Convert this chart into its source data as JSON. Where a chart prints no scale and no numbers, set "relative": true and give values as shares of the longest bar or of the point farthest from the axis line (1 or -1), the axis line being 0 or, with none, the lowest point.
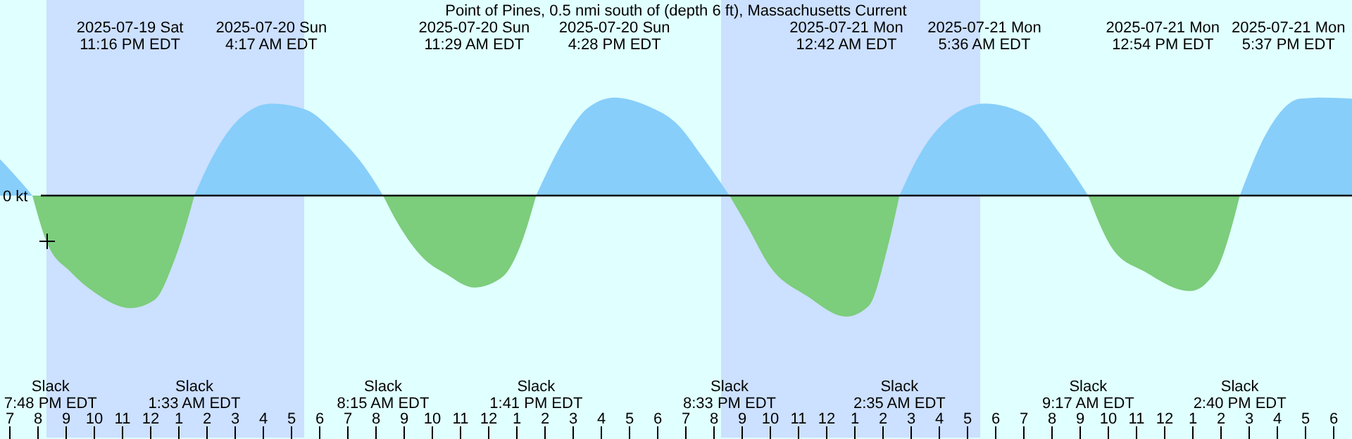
{
  "chart_data": {
    "type": "area",
    "title": "Point of Pines, 0.5 nmi south of (depth 6 ft), Massachusetts Current",
    "relative": true,
    "x": [
      "2025-07-19T18:39",
      "2025-07-19T19:15",
      "2025-07-19T19:48",
      "2025-07-19T20:18",
      "2025-07-19T21:09",
      "2025-07-19T22:00",
      "2025-07-19T23:16",
      "2025-07-20T00:09",
      "2025-07-20T00:48",
      "2025-07-20T01:18",
      "2025-07-20T01:33",
      "2025-07-20T02:09",
      "2025-07-20T03:00",
      "2025-07-20T04:17",
      "2025-07-20T05:30",
      "2025-07-20T06:39",
      "2025-07-20T07:39",
      "2025-07-20T08:15",
      "2025-07-20T08:48",
      "2025-07-20T09:39",
      "2025-07-20T10:30",
      "2025-07-20T11:29",
      "2025-07-20T12:30",
      "2025-07-20T13:09",
      "2025-07-20T13:41",
      "2025-07-20T14:39",
      "2025-07-20T15:30",
      "2025-07-20T16:28",
      "2025-07-20T17:39",
      "2025-07-20T18:39",
      "2025-07-20T19:39",
      "2025-07-20T20:33",
      "2025-07-20T21:09",
      "2025-07-20T22:00",
      "2025-07-20T23:18",
      "2025-07-21T00:42",
      "2025-07-21T01:30",
      "2025-07-21T02:09",
      "2025-07-21T02:35",
      "2025-07-21T03:18",
      "2025-07-21T04:18",
      "2025-07-21T05:36",
      "2025-07-21T07:09",
      "2025-07-21T08:18",
      "2025-07-21T09:17",
      "2025-07-21T10:09",
      "2025-07-21T11:18",
      "2025-07-21T12:54",
      "2025-07-21T13:48",
      "2025-07-21T14:24",
      "2025-07-21T14:40",
      "2025-07-21T15:39",
      "2025-07-21T16:48",
      "2025-07-21T17:37",
      "2025-07-21T18:39"
    ],
    "series": [
      {
        "color": "#87cefa",
        "values": [
          0.3,
          0.15,
          0,
          null,
          null,
          null,
          null,
          null,
          null,
          null,
          0,
          0.3,
          0.6,
          0.76,
          0.71,
          0.49,
          0.22,
          0,
          null,
          null,
          null,
          null,
          null,
          null,
          0,
          0.45,
          0.72,
          0.81,
          0.74,
          0.6,
          0.3,
          0,
          null,
          null,
          null,
          null,
          null,
          null,
          0,
          0.34,
          0.63,
          0.76,
          0.66,
          0.34,
          0,
          null,
          null,
          null,
          null,
          null,
          0,
          0.53,
          0.8,
          0.81,
          0.8
        ]
      },
      {
        "color": "#7ccd7c",
        "values": [
          null,
          null,
          0,
          -0.38,
          -0.63,
          -0.8,
          -0.93,
          -0.86,
          -0.56,
          -0.21,
          0,
          null,
          null,
          null,
          null,
          null,
          null,
          0,
          -0.24,
          -0.51,
          -0.65,
          -0.76,
          -0.67,
          -0.4,
          0,
          null,
          null,
          null,
          null,
          null,
          null,
          0,
          -0.24,
          -0.59,
          -0.83,
          -1,
          -0.91,
          -0.44,
          0,
          null,
          null,
          null,
          null,
          null,
          0,
          -0.44,
          -0.63,
          -0.79,
          -0.63,
          -0.24,
          0,
          null,
          null,
          null,
          null
        ]
      }
    ],
    "xlim": [
      "2025-07-19T18:39",
      "2025-07-21T18:39"
    ],
    "xticks": [
      {
        "value": "2025-07-19T19:00",
        "label": "7"
      },
      {
        "value": "2025-07-19T20:00",
        "label": "8"
      },
      {
        "value": "2025-07-19T21:00",
        "label": "9"
      },
      {
        "value": "2025-07-19T22:00",
        "label": "10"
      },
      {
        "value": "2025-07-19T23:00",
        "label": "11"
      },
      {
        "value": "2025-07-20T00:00",
        "label": "12"
      },
      {
        "value": "2025-07-20T01:00",
        "label": "1"
      },
      {
        "value": "2025-07-20T02:00",
        "label": "2"
      },
      {
        "value": "2025-07-20T03:00",
        "label": "3"
      },
      {
        "value": "2025-07-20T04:00",
        "label": "4"
      },
      {
        "value": "2025-07-20T05:00",
        "label": "5"
      },
      {
        "value": "2025-07-20T06:00",
        "label": "6"
      },
      {
        "value": "2025-07-20T07:00",
        "label": "7"
      },
      {
        "value": "2025-07-20T08:00",
        "label": "8"
      },
      {
        "value": "2025-07-20T09:00",
        "label": "9"
      },
      {
        "value": "2025-07-20T10:00",
        "label": "10"
      },
      {
        "value": "2025-07-20T11:00",
        "label": "11"
      },
      {
        "value": "2025-07-20T12:00",
        "label": "12"
      },
      {
        "value": "2025-07-20T13:00",
        "label": "1"
      },
      {
        "value": "2025-07-20T14:00",
        "label": "2"
      },
      {
        "value": "2025-07-20T15:00",
        "label": "3"
      },
      {
        "value": "2025-07-20T16:00",
        "label": "4"
      },
      {
        "value": "2025-07-20T17:00",
        "label": "5"
      },
      {
        "value": "2025-07-20T18:00",
        "label": "6"
      },
      {
        "value": "2025-07-20T19:00",
        "label": "7"
      },
      {
        "value": "2025-07-20T20:00",
        "label": "8"
      },
      {
        "value": "2025-07-20T21:00",
        "label": "9"
      },
      {
        "value": "2025-07-20T22:00",
        "label": "10"
      },
      {
        "value": "2025-07-20T23:00",
        "label": "11"
      },
      {
        "value": "2025-07-21T00:00",
        "label": "12"
      },
      {
        "value": "2025-07-21T01:00",
        "label": "1"
      },
      {
        "value": "2025-07-21T02:00",
        "label": "2"
      },
      {
        "value": "2025-07-21T03:00",
        "label": "3"
      },
      {
        "value": "2025-07-21T04:00",
        "label": "4"
      },
      {
        "value": "2025-07-21T05:00",
        "label": "5"
      },
      {
        "value": "2025-07-21T06:00",
        "label": "6"
      },
      {
        "value": "2025-07-21T07:00",
        "label": "7"
      },
      {
        "value": "2025-07-21T08:00",
        "label": "8"
      },
      {
        "value": "2025-07-21T09:00",
        "label": "9"
      },
      {
        "value": "2025-07-21T10:00",
        "label": "10"
      },
      {
        "value": "2025-07-21T11:00",
        "label": "11"
      },
      {
        "value": "2025-07-21T12:00",
        "label": "12"
      },
      {
        "value": "2025-07-21T13:00",
        "label": "1"
      },
      {
        "value": "2025-07-21T14:00",
        "label": "2"
      },
      {
        "value": "2025-07-21T15:00",
        "label": "3"
      },
      {
        "value": "2025-07-21T16:00",
        "label": "4"
      },
      {
        "value": "2025-07-21T17:00",
        "label": "5"
      },
      {
        "value": "2025-07-21T18:00",
        "label": "6"
      }
    ],
    "bands": [
      {
        "axis": "x",
        "from": "2025-07-19T20:18",
        "to": "2025-07-20T05:27",
        "color": "#cce0ff"
      },
      {
        "axis": "x",
        "from": "2025-07-20T20:15",
        "to": "2025-07-21T05:27",
        "color": "#cce0ff"
      }
    ],
    "ref_lines": [
      {
        "axis": "y",
        "value": 0,
        "label": "0 kt",
        "color": "#000000"
      }
    ],
    "annotations": [
      "2025-07-19 Sat\n11:16 PM EDT",
      "2025-07-20 Sun\n4:17 AM EDT",
      "2025-07-20 Sun\n11:29 AM EDT",
      "2025-07-20 Sun\n4:28 PM EDT",
      "2025-07-21 Mon\n12:42 AM EDT",
      "2025-07-21 Mon\n5:36 AM EDT",
      "2025-07-21 Mon\n12:54 PM EDT",
      "2025-07-21 Mon\n5:37 PM EDT",
      "Slack\n7:48 PM EDT",
      "Slack\n1:33 AM EDT",
      "Slack\n8:15 AM EDT",
      "Slack\n1:41 PM EDT",
      "Slack\n8:33 PM EDT",
      "Slack\n2:35 AM EDT",
      "Slack\n9:17 AM EDT",
      "Slack\n2:40 PM EDT"
    ]
  }
}
